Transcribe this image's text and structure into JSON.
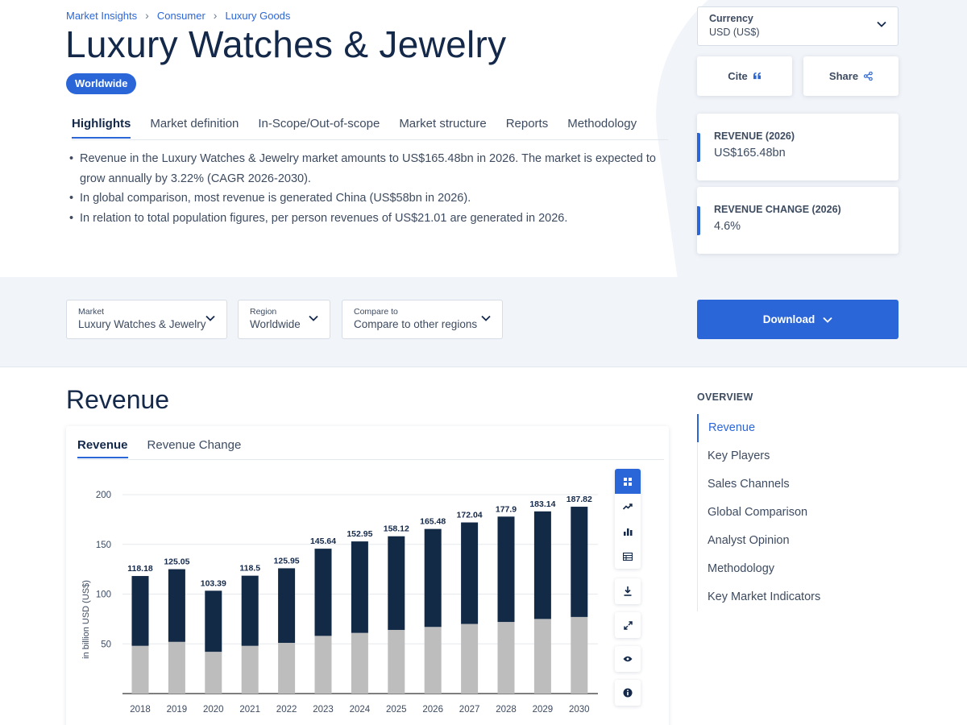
{
  "breadcrumb": [
    "Market Insights",
    "Consumer",
    "Luxury Goods"
  ],
  "title": "Luxury Watches & Jewelry",
  "region_badge": "Worldwide",
  "tabs": [
    "Highlights",
    "Market definition",
    "In-Scope/Out-of-scope",
    "Market structure",
    "Reports",
    "Methodology"
  ],
  "active_tab": "Highlights",
  "highlights": [
    "Revenue in the Luxury Watches & Jewelry market amounts to US$165.48bn in 2026. The market is expected to grow annually by 3.22% (CAGR 2026-2030).",
    "In global comparison, most revenue is generated China (US$58bn in 2026).",
    "In relation to total population figures, per person revenues of US$21.01 are generated in 2026."
  ],
  "currency": {
    "label": "Currency",
    "value": "USD (US$)"
  },
  "cite_label": "Cite",
  "share_label": "Share",
  "kpis": [
    {
      "label": "REVENUE (2026)",
      "value": "US$165.48bn"
    },
    {
      "label": "REVENUE CHANGE (2026)",
      "value": "4.6%"
    }
  ],
  "filters": {
    "market": {
      "label": "Market",
      "value": "Luxury Watches & Jewelry"
    },
    "region": {
      "label": "Region",
      "value": "Worldwide"
    },
    "compare": {
      "label": "Compare to",
      "value": "Compare to other regions"
    }
  },
  "download_label": "Download",
  "section_title": "Revenue",
  "chart_tabs": [
    "Revenue",
    "Revenue Change"
  ],
  "overview": {
    "title": "OVERVIEW",
    "items": [
      "Revenue",
      "Key Players",
      "Sales Channels",
      "Global Comparison",
      "Analyst Opinion",
      "Methodology",
      "Key Market Indicators"
    ],
    "active": "Revenue"
  },
  "icons": {
    "breadcrumb_separator": "chevron-right-icon",
    "cite": "quote-icon",
    "share": "share-icon",
    "dropdown": "chevron-down-icon",
    "chart_tools": [
      "grid-icon",
      "trend-icon",
      "bar-chart-icon",
      "table-icon",
      "download-icon",
      "expand-icon",
      "eye-icon",
      "info-icon"
    ]
  },
  "colors": {
    "accent": "#2b66d8",
    "bar_dark": "#132a46",
    "bar_light": "#bdbdbd"
  },
  "chart_data": {
    "type": "bar",
    "stacked": true,
    "categories": [
      "2018",
      "2019",
      "2020",
      "2021",
      "2022",
      "2023",
      "2024",
      "2025",
      "2026",
      "2027",
      "2028",
      "2029",
      "2030"
    ],
    "totals": [
      118.18,
      125.05,
      103.39,
      118.5,
      125.95,
      145.64,
      152.95,
      158.12,
      165.48,
      172.04,
      177.9,
      183.14,
      187.82
    ],
    "series": [
      {
        "values": [
          48,
          52,
          42,
          48,
          51,
          58,
          61,
          64,
          67,
          70,
          72,
          75,
          77
        ]
      },
      {
        "values": [
          70.18,
          73.05,
          61.39,
          70.5,
          74.95,
          87.64,
          91.95,
          94.12,
          98.48,
          102.04,
          105.9,
          108.14,
          110.82
        ]
      }
    ],
    "ylabel": "in billion USD (US$)",
    "yticks": [
      50,
      100,
      150,
      200
    ],
    "ylim": [
      0,
      200
    ],
    "grid": true
  }
}
